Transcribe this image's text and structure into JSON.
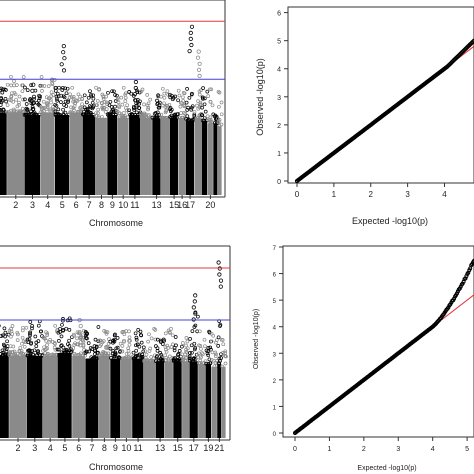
{
  "chart_data": [
    {
      "type": "scatter",
      "subtype": "manhattan",
      "title": "",
      "xlabel": "Chromosome",
      "ylabel": "",
      "x_tick_labels": [
        "2",
        "3",
        "4",
        "5",
        "6",
        "7",
        "8",
        "9",
        "10",
        "11",
        "13",
        "15",
        "16",
        "17",
        "20"
      ],
      "chromosome_labels_right": [
        "16",
        "17",
        "20"
      ],
      "ylim": [
        0,
        7
      ],
      "threshold_lines": [
        {
          "color": "#e4393c",
          "value": 6.3
        },
        {
          "color": "#4040d8",
          "value": 4.2
        }
      ],
      "colors": {
        "odd": "#000000",
        "even": "#8a8a8a"
      },
      "notable_peaks": [
        {
          "chromosome": "3",
          "value": 4.0
        },
        {
          "chromosome": "5",
          "value": 5.4
        },
        {
          "chromosome": "11",
          "value": 4.1
        },
        {
          "chromosome": "17",
          "value": 6.1
        },
        {
          "chromosome": "18",
          "value": 5.2
        }
      ]
    },
    {
      "type": "scatter",
      "subtype": "qq",
      "title": "",
      "xlabel": "Expected  -log10(p)",
      "ylabel": "Observed  -log10(p)",
      "x_ticks": [
        0,
        1,
        2,
        3,
        4
      ],
      "y_ticks": [
        0,
        1,
        2,
        3,
        4,
        5,
        6
      ],
      "xlim": [
        0,
        4.8
      ],
      "ylim": [
        0,
        6.2
      ],
      "points_end": {
        "x": 4.8,
        "y": 5.0
      },
      "reference_line_color": "#e4393c"
    },
    {
      "type": "scatter",
      "subtype": "manhattan",
      "title": "",
      "xlabel": "Chromosome",
      "ylabel": "",
      "x_tick_labels": [
        "2",
        "3",
        "4",
        "5",
        "6",
        "7",
        "8",
        "9",
        "10",
        "11",
        "13",
        "15",
        "17",
        "19",
        "21"
      ],
      "ylim": [
        0,
        7
      ],
      "threshold_lines": [
        {
          "color": "#e4393c",
          "value": 6.2
        },
        {
          "color": "#4040d8",
          "value": 4.3
        }
      ],
      "colors": {
        "odd": "#000000",
        "even": "#8a8a8a"
      },
      "notable_peaks": [
        {
          "chromosome": "17",
          "value": 5.2
        },
        {
          "chromosome": "21",
          "value": 6.4
        },
        {
          "chromosome": "6",
          "value": 4.3
        }
      ]
    },
    {
      "type": "scatter",
      "subtype": "qq",
      "title": "",
      "xlabel": "Expected -log10(p)",
      "ylabel": "Observed -log10(p)",
      "x_ticks": [
        0,
        1,
        2,
        3,
        4,
        5
      ],
      "y_ticks": [
        0,
        1,
        2,
        3,
        4,
        5,
        6,
        7
      ],
      "xlim": [
        0,
        5.2
      ],
      "ylim": [
        0,
        7
      ],
      "points_end": {
        "x": 5.2,
        "y": 6.5
      },
      "deviation_start": 4.0,
      "reference_line_color": "#e4393c"
    }
  ]
}
